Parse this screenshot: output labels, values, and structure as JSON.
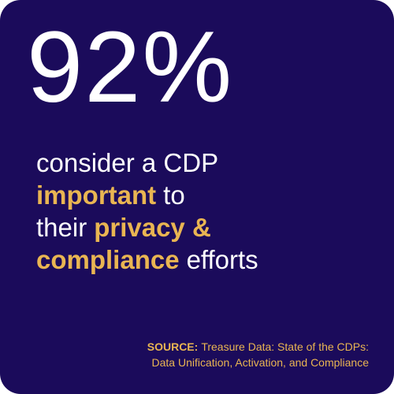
{
  "stat": "92%",
  "statement": {
    "highlight_color": "#e9b552",
    "text_color": "#ffffff",
    "lines": [
      [
        {
          "text": "consider a CDP",
          "highlight": false
        }
      ],
      [
        {
          "text": "important",
          "highlight": true
        },
        {
          "text": "to",
          "highlight": false
        }
      ],
      [
        {
          "text": "their",
          "highlight": false
        },
        {
          "text": "privacy &",
          "highlight": true
        }
      ],
      [
        {
          "text": "compliance",
          "highlight": true
        },
        {
          "text": "efforts",
          "highlight": false
        }
      ]
    ]
  },
  "source": {
    "label": "SOURCE:",
    "lines": [
      "Treasure Data: State of the CDPs:",
      "Data Unification, Activation, and Compliance"
    ]
  }
}
